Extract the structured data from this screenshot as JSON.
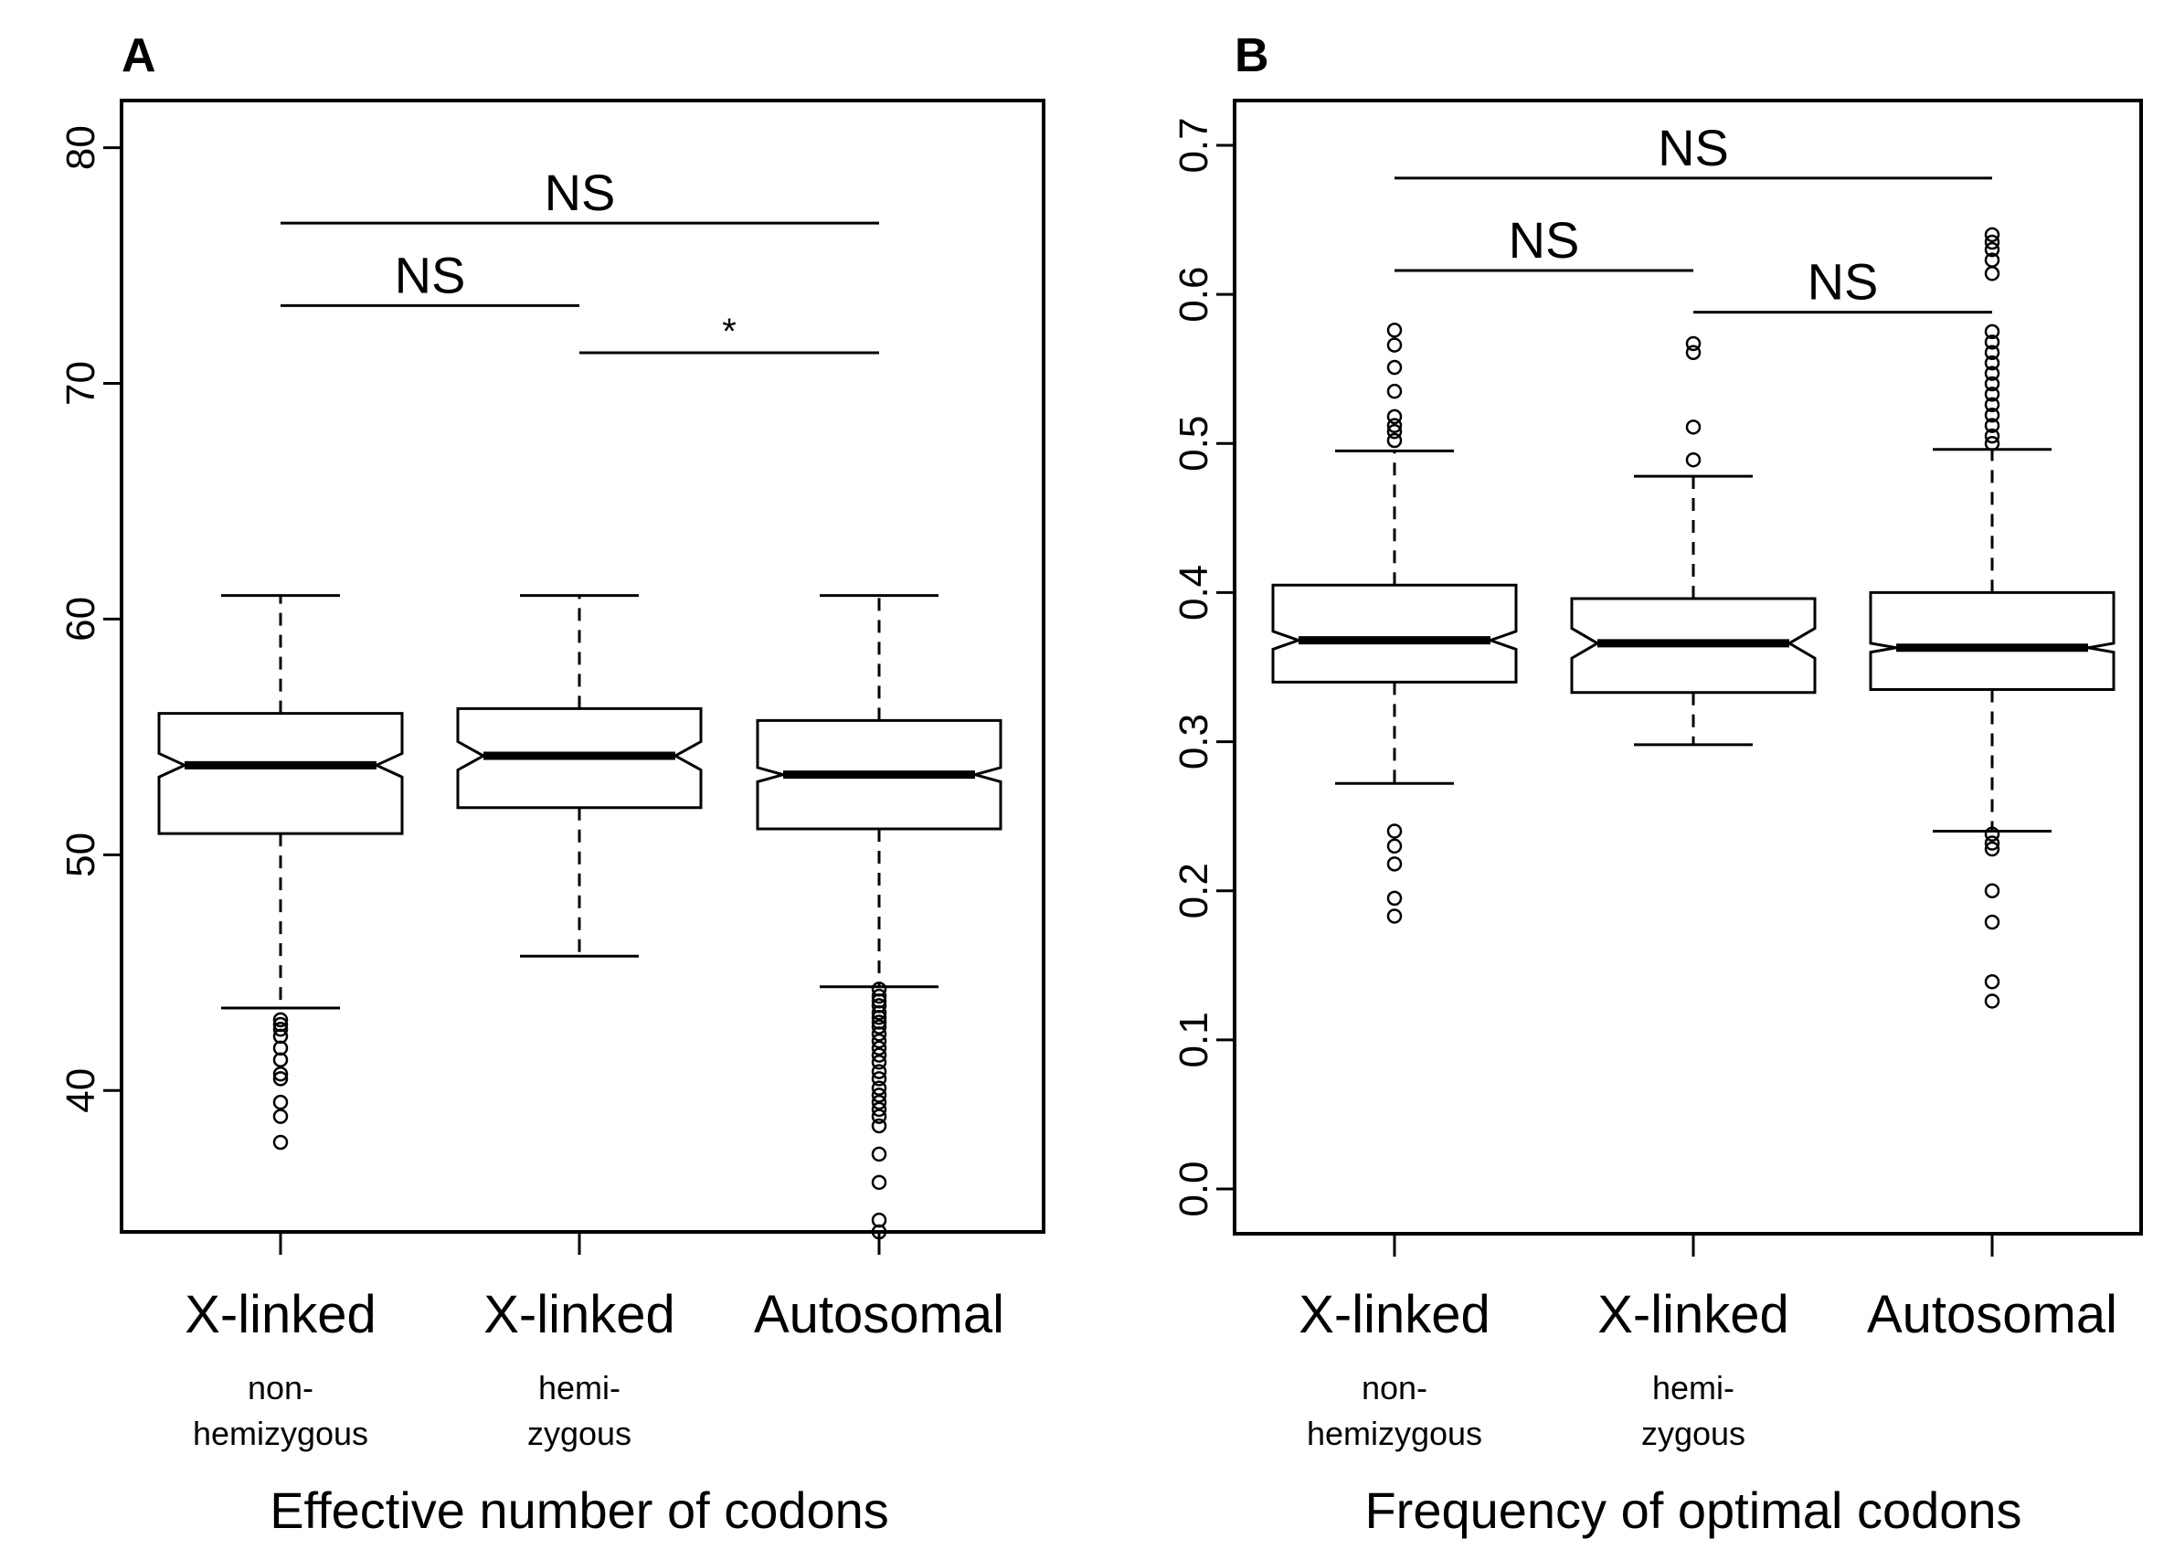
{
  "chart_data": [
    {
      "type": "boxplot",
      "panel": "A",
      "title": "",
      "xlabel": "Effective number of codons",
      "ylabel": "",
      "ylim": [
        34,
        82
      ],
      "yticks": [
        40,
        50,
        60,
        70,
        80
      ],
      "yticklabels": [
        "40",
        "50",
        "60",
        "70",
        "80"
      ],
      "notched": true,
      "categories": [
        {
          "name": "X-linked",
          "sub": [
            "non-",
            "hemizygous"
          ]
        },
        {
          "name": "X-linked",
          "sub": [
            "hemi-",
            "zygous"
          ]
        },
        {
          "name": "Autosomal",
          "sub": []
        }
      ],
      "boxes": [
        {
          "whisker_low": 43.5,
          "q1": 50.9,
          "median": 53.8,
          "q3": 56.0,
          "whisker_high": 61.0,
          "notch_low": 53.3,
          "notch_high": 54.3,
          "outliers": [
            43.0,
            42.8,
            42.6,
            42.3,
            41.8,
            41.3,
            40.7,
            40.5,
            39.5,
            38.9,
            37.8
          ]
        },
        {
          "whisker_low": 45.7,
          "q1": 52.0,
          "median": 54.2,
          "q3": 56.2,
          "whisker_high": 61.0,
          "notch_low": 53.6,
          "notch_high": 54.8,
          "outliers": []
        },
        {
          "whisker_low": 44.4,
          "q1": 51.1,
          "median": 53.4,
          "q3": 55.7,
          "whisker_high": 61.0,
          "notch_low": 53.1,
          "notch_high": 53.7,
          "outliers": [
            44.3,
            44.0,
            43.8,
            43.6,
            43.3,
            43.1,
            42.9,
            42.7,
            42.4,
            42.1,
            41.8,
            41.5,
            41.2,
            40.8,
            40.5,
            40.1,
            39.8,
            39.5,
            39.2,
            38.9,
            38.5,
            37.3,
            36.1,
            34.5,
            34.0
          ]
        }
      ],
      "annotations": [
        {
          "from": 0,
          "to": 2,
          "label": "NS",
          "y": 76.8
        },
        {
          "from": 0,
          "to": 1,
          "label": "NS",
          "y": 73.3
        },
        {
          "from": 1,
          "to": 2,
          "label": "*",
          "y": 71.3
        }
      ]
    },
    {
      "type": "boxplot",
      "panel": "B",
      "title": "",
      "xlabel": "Frequency of optimal codons",
      "ylabel": "",
      "ylim": [
        -0.03,
        0.73
      ],
      "yticks": [
        0.0,
        0.1,
        0.2,
        0.3,
        0.4,
        0.5,
        0.6,
        0.7
      ],
      "yticklabels": [
        "0.0",
        "0.1",
        "0.2",
        "0.3",
        "0.4",
        "0.5",
        "0.6",
        "0.7"
      ],
      "notched": true,
      "categories": [
        {
          "name": "X-linked",
          "sub": [
            "non-",
            "hemizygous"
          ]
        },
        {
          "name": "X-linked",
          "sub": [
            "hemi-",
            "zygous"
          ]
        },
        {
          "name": "Autosomal",
          "sub": []
        }
      ],
      "boxes": [
        {
          "whisker_low": 0.272,
          "q1": 0.34,
          "median": 0.368,
          "q3": 0.405,
          "whisker_high": 0.495,
          "notch_low": 0.362,
          "notch_high": 0.374,
          "outliers": [
            0.576,
            0.566,
            0.551,
            0.535,
            0.518,
            0.512,
            0.508,
            0.502,
            0.24,
            0.23,
            0.218,
            0.195,
            0.183
          ]
        },
        {
          "whisker_low": 0.298,
          "q1": 0.333,
          "median": 0.366,
          "q3": 0.396,
          "whisker_high": 0.478,
          "notch_low": 0.356,
          "notch_high": 0.376,
          "outliers": [
            0.567,
            0.561,
            0.511,
            0.489
          ]
        },
        {
          "whisker_low": 0.24,
          "q1": 0.335,
          "median": 0.363,
          "q3": 0.4,
          "whisker_high": 0.496,
          "notch_low": 0.36,
          "notch_high": 0.366,
          "outliers": [
            0.64,
            0.635,
            0.63,
            0.623,
            0.614,
            0.575,
            0.568,
            0.561,
            0.554,
            0.547,
            0.54,
            0.533,
            0.526,
            0.519,
            0.512,
            0.505,
            0.5,
            0.238,
            0.232,
            0.228,
            0.2,
            0.179,
            0.139,
            0.126
          ]
        }
      ],
      "annotations": [
        {
          "from": 0,
          "to": 2,
          "label": "NS",
          "y": 0.678
        },
        {
          "from": 0,
          "to": 1,
          "label": "NS",
          "y": 0.616
        },
        {
          "from": 1,
          "to": 2,
          "label": "NS",
          "y": 0.588
        }
      ]
    }
  ]
}
